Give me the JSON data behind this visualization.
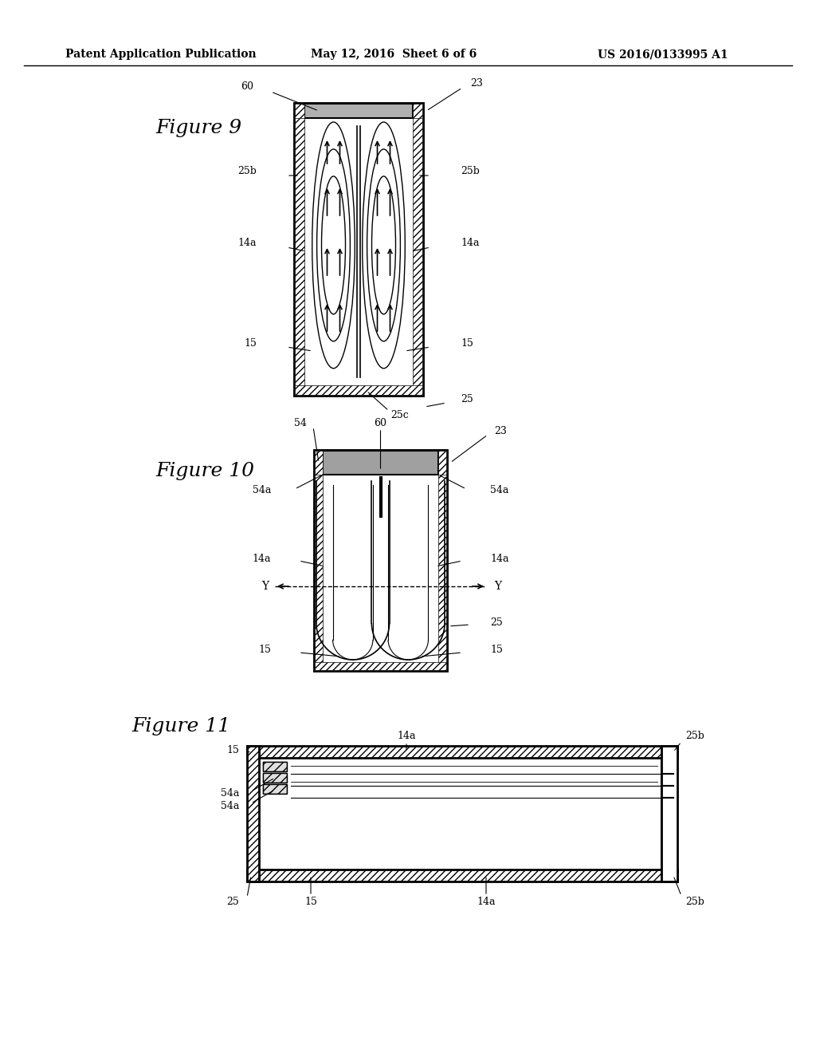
{
  "background_color": "#ffffff",
  "header_text": "Patent Application Publication",
  "header_date": "May 12, 2016  Sheet 6 of 6",
  "header_patent": "US 2016/0133995 A1",
  "fig9_label": "Figure 9",
  "fig10_label": "Figure 10",
  "fig11_label": "Figure 11",
  "label_color": "#000000",
  "hatching_color": "#000000",
  "gray_fill": "#c0c0c0",
  "light_gray": "#d8d8d8"
}
